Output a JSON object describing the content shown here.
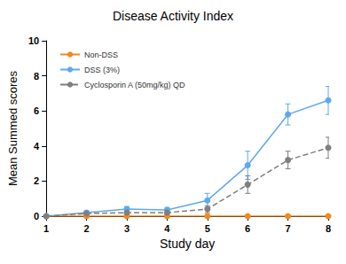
{
  "chart_data": {
    "type": "line",
    "title": "Disease Activity Index",
    "x_label": "Study day",
    "y_label": "Mean Summed scores",
    "x": [
      1,
      2,
      3,
      4,
      5,
      6,
      7,
      8
    ],
    "xlim": [
      1,
      8
    ],
    "xticks": [
      1,
      2,
      3,
      4,
      5,
      6,
      7,
      8
    ],
    "ylim": [
      0,
      10
    ],
    "yticks": [
      0,
      2,
      4,
      6,
      8,
      10
    ],
    "grid": false,
    "legend": "top-left",
    "series": [
      {
        "name": "Non-DSS",
        "color": "#f5871f",
        "marker": "circle",
        "line_style": "solid",
        "values": [
          0,
          0,
          0,
          0,
          0,
          0,
          0,
          0
        ],
        "errors": [
          0,
          0,
          0,
          0,
          0,
          0,
          0,
          0
        ]
      },
      {
        "name": "DSS (3%)",
        "color": "#5fa8ee",
        "marker": "circle",
        "line_style": "solid",
        "values": [
          0,
          0.2,
          0.4,
          0.35,
          0.9,
          2.9,
          5.8,
          6.6
        ],
        "errors": [
          0,
          0.1,
          0.15,
          0.15,
          0.4,
          0.8,
          0.6,
          0.8
        ]
      },
      {
        "name": "Cyclosporin A (50mg/kg) QD",
        "color": "#7f7f7f",
        "marker": "circle",
        "line_style": "dashed",
        "values": [
          0,
          0.15,
          0.2,
          0.2,
          0.4,
          1.8,
          3.2,
          3.9
        ],
        "errors": [
          0,
          0.1,
          0.1,
          0.1,
          0.2,
          0.5,
          0.5,
          0.6
        ]
      }
    ]
  }
}
